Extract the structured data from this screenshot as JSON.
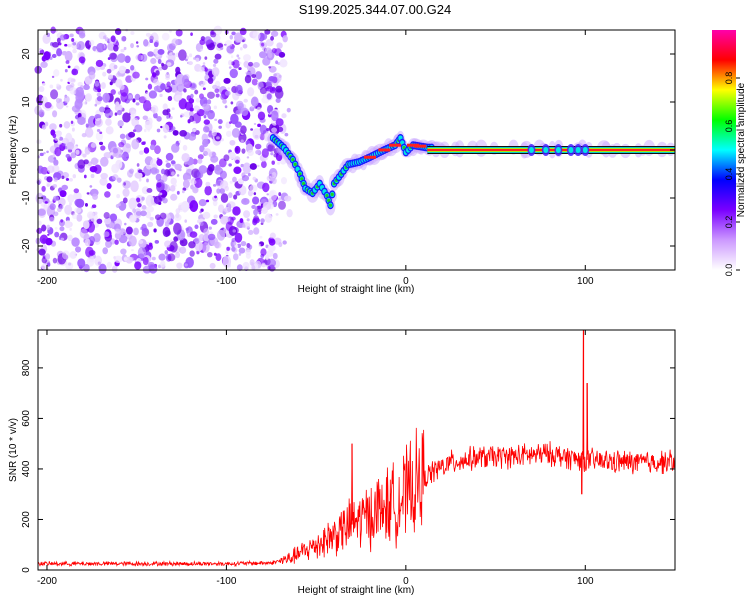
{
  "chart_data": [
    {
      "type": "heatmap",
      "title": "S199.2025.344.07.00.G24",
      "xlabel": "Height of straight line (km)",
      "ylabel": "Frequency (Hz)",
      "xlim": [
        -205,
        150
      ],
      "ylim": [
        -25,
        25
      ],
      "xticks": [
        -200,
        -100,
        0,
        100
      ],
      "yticks": [
        -20,
        -10,
        0,
        10,
        20
      ],
      "colorbar": {
        "label": "Normalized spectral amplitude",
        "range": [
          0,
          1
        ],
        "ticks": [
          "0.0",
          "0.2",
          "0.4",
          "0.6",
          "0.8"
        ],
        "colors": [
          "#ffffff",
          "#cc99ff",
          "#7a00ff",
          "#0000ff",
          "#00ffff",
          "#00ff00",
          "#ffff00",
          "#ff0000",
          "#ff00aa"
        ]
      },
      "noise_region_km": [
        -205,
        -70
      ],
      "signal_track": [
        {
          "x": -74,
          "f": 2.5
        },
        {
          "x": -68,
          "f": 0.5
        },
        {
          "x": -63,
          "f": -2
        },
        {
          "x": -59,
          "f": -5
        },
        {
          "x": -56,
          "f": -8
        },
        {
          "x": -52,
          "f": -9
        },
        {
          "x": -48,
          "f": -7
        },
        {
          "x": -44,
          "f": -9.5
        },
        {
          "x": -42,
          "f": -11.5
        },
        {
          "x": -40,
          "f": -7
        },
        {
          "x": -36,
          "f": -5
        },
        {
          "x": -32,
          "f": -3
        },
        {
          "x": -26,
          "f": -2.5
        },
        {
          "x": -20,
          "f": -1.5
        },
        {
          "x": -12,
          "f": 0
        },
        {
          "x": -6,
          "f": 1
        },
        {
          "x": -3,
          "f": 2.5
        },
        {
          "x": 0,
          "f": -0.5
        },
        {
          "x": 4,
          "f": 1
        },
        {
          "x": 12,
          "f": 0.5
        },
        {
          "x": 150,
          "f": 0
        }
      ]
    },
    {
      "type": "line",
      "xlabel": "Height of straight line (km)",
      "ylabel": "SNR (10 * v/v)",
      "xlim": [
        -205,
        150
      ],
      "ylim": [
        0,
        950
      ],
      "xticks": [
        -200,
        -100,
        0,
        100
      ],
      "yticks": [
        0,
        200,
        400,
        600,
        800
      ],
      "series_color": "#ff0000",
      "trend": [
        {
          "x": -205,
          "y": 25
        },
        {
          "x": -150,
          "y": 25
        },
        {
          "x": -100,
          "y": 25
        },
        {
          "x": -75,
          "y": 28
        },
        {
          "x": -65,
          "y": 45
        },
        {
          "x": -55,
          "y": 80
        },
        {
          "x": -45,
          "y": 120
        },
        {
          "x": -35,
          "y": 160
        },
        {
          "x": -25,
          "y": 200
        },
        {
          "x": -15,
          "y": 240
        },
        {
          "x": -5,
          "y": 270
        },
        {
          "x": 5,
          "y": 330
        },
        {
          "x": 15,
          "y": 390
        },
        {
          "x": 25,
          "y": 425
        },
        {
          "x": 40,
          "y": 445
        },
        {
          "x": 60,
          "y": 450
        },
        {
          "x": 80,
          "y": 460
        },
        {
          "x": 95,
          "y": 440
        },
        {
          "x": 110,
          "y": 430
        },
        {
          "x": 130,
          "y": 425
        },
        {
          "x": 150,
          "y": 430
        }
      ],
      "spikes": [
        {
          "x": -30,
          "y": 500
        },
        {
          "x": 98,
          "y": 300
        },
        {
          "x": 99,
          "y": 950
        },
        {
          "x": 101,
          "y": 740
        }
      ]
    }
  ]
}
